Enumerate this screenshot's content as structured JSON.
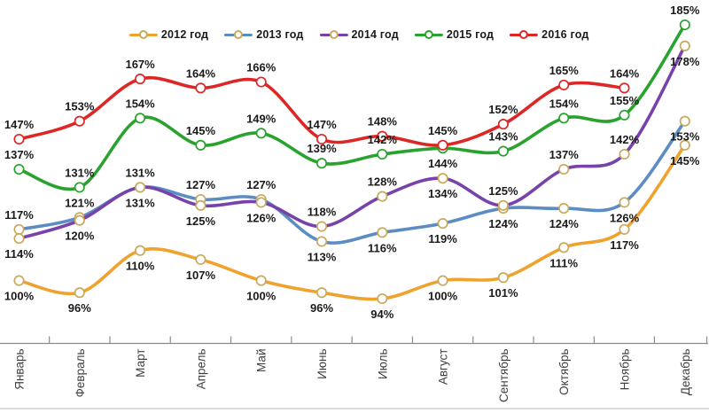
{
  "chart_data": {
    "type": "line",
    "title": "",
    "value_suffix": "%",
    "categories": [
      "Январь",
      "Февраль",
      "Март",
      "Апрель",
      "Май",
      "Июнь",
      "Июль",
      "Август",
      "Сентябрь",
      "Октябрь",
      "Ноябрь",
      "Декабрь"
    ],
    "series": [
      {
        "name": "2012 год",
        "color": "#F0A22E",
        "marker_edge": "#C9A95C",
        "values": [
          100,
          96,
          110,
          107,
          100,
          96,
          94,
          100,
          101,
          111,
          117,
          145
        ],
        "label_positions": [
          "below",
          "below",
          "below",
          "below",
          "below",
          "below",
          "below",
          "below",
          "below",
          "below",
          "below",
          "below"
        ]
      },
      {
        "name": "2013 год",
        "color": "#5B8CC4",
        "marker_edge": "#C9A95C",
        "values": [
          117,
          121,
          131,
          127,
          127,
          113,
          116,
          119,
          124,
          124,
          126,
          153
        ],
        "label_positions": [
          "above",
          "above",
          "above",
          "above",
          "above",
          "below",
          "below",
          "below",
          "below",
          "below",
          "below",
          "below"
        ]
      },
      {
        "name": "2014 год",
        "color": "#7742A9",
        "marker_edge": "#C9A95C",
        "values": [
          114,
          120,
          131,
          125,
          126,
          118,
          128,
          134,
          125,
          137,
          142,
          178
        ],
        "label_positions": [
          "below",
          "below",
          "below",
          "below",
          "below",
          "above",
          "above",
          "below",
          "above",
          "above",
          "above",
          "below"
        ]
      },
      {
        "name": "2015 год",
        "color": "#29A22E",
        "marker_edge": "#29A22E",
        "values": [
          137,
          131,
          154,
          145,
          149,
          139,
          142,
          144,
          143,
          154,
          155,
          185
        ],
        "label_positions": [
          "above",
          "above",
          "above",
          "above",
          "above",
          "above",
          "above",
          "below",
          "above",
          "above",
          "above",
          "above"
        ]
      },
      {
        "name": "2016 год",
        "color": "#DD2727",
        "marker_edge": "#DD2727",
        "values": [
          147,
          153,
          167,
          164,
          166,
          147,
          148,
          145,
          152,
          165,
          164,
          null
        ],
        "label_positions": [
          "above",
          "above",
          "above",
          "above",
          "above",
          "above",
          "above",
          "above",
          "above",
          "above",
          "above",
          "above"
        ]
      }
    ],
    "legend_position": "top",
    "grid": false,
    "y_axis_visible": false,
    "ylim": [
      80,
      195
    ],
    "axis_color": "#8C8C8C",
    "baseline_color": "#C8C8C8",
    "data_label_color": "#1A1A1A",
    "month_label_color": "#404040",
    "legend_text_color": "#1A1A1A"
  }
}
